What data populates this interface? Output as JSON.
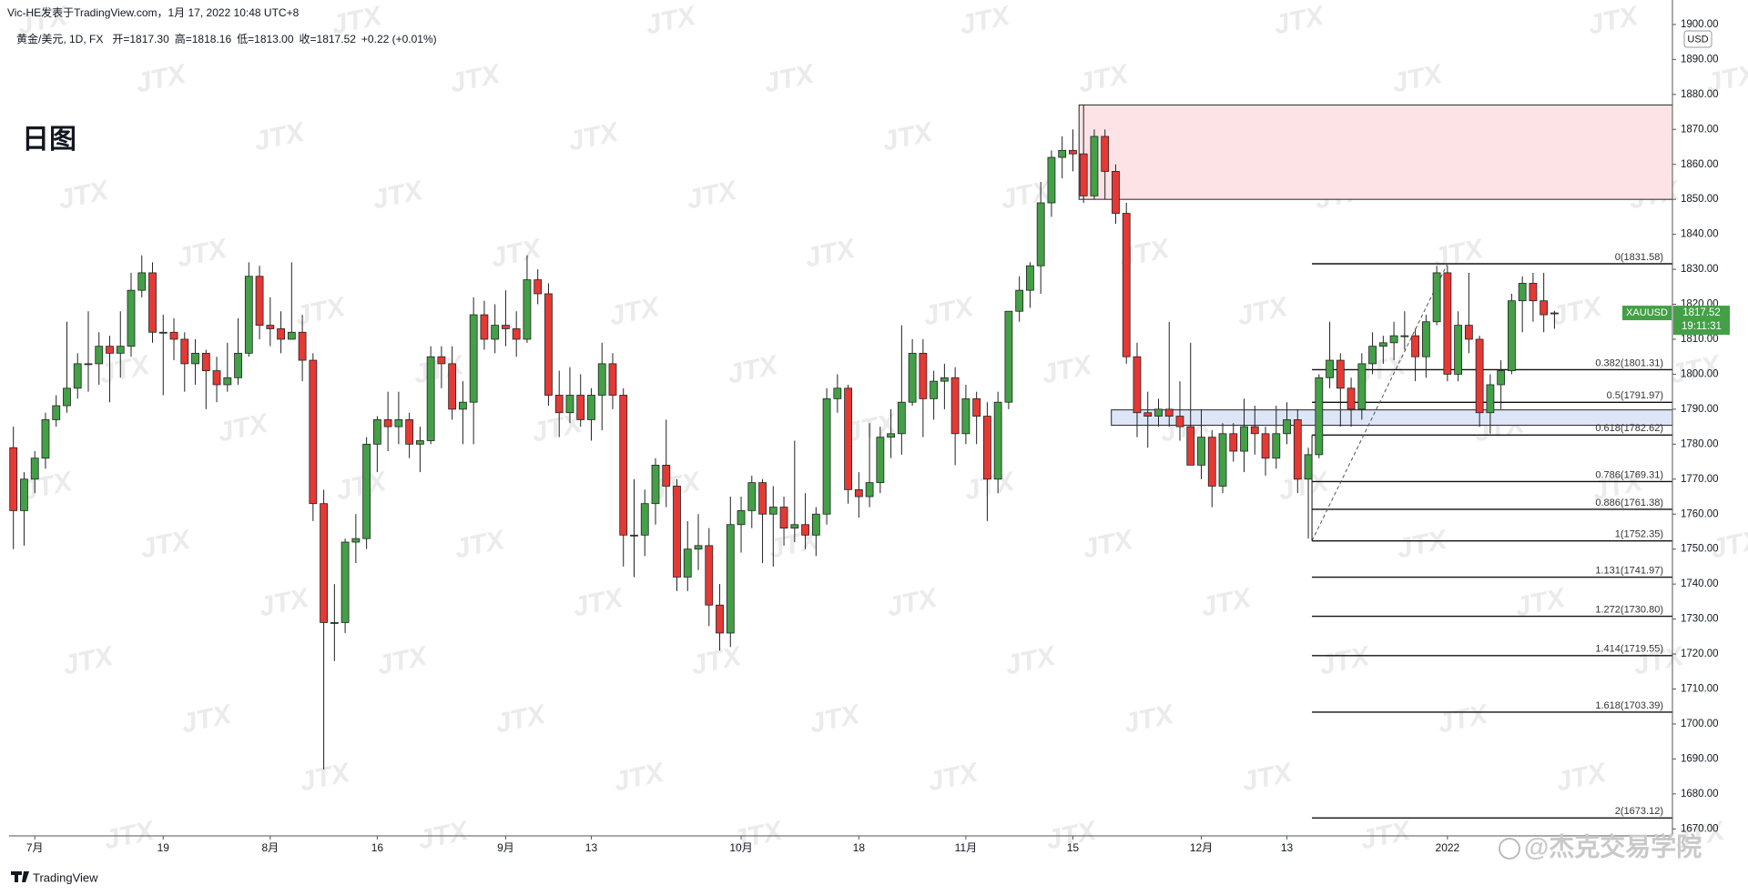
{
  "chart_data": {
    "type": "candlestick",
    "header": "Vic-HE发表于TradingView.com，1月 17, 2022 10:48 UTC+8",
    "symbol": "黄金/美元, 1D, FX",
    "legend": [
      "开=1817.30",
      "高=1818.16",
      "低=1813.00",
      "收=1817.52",
      "+0.22 (+0.01%)"
    ],
    "title": "日图",
    "currency": "USD",
    "ticker": "XAUUSD",
    "countdown": "19:11:31",
    "watermark": "JTX",
    "credit": "@杰克交易学院",
    "brand": "TradingView",
    "up_color": "#43a047",
    "down_color": "#e53935",
    "ylim": [
      1668,
      1907
    ],
    "yticks": [
      {
        "value": 1670,
        "label": "1670.00"
      },
      {
        "value": 1680,
        "label": "1680.00"
      },
      {
        "value": 1690,
        "label": "1690.00"
      },
      {
        "value": 1700,
        "label": "1700.00"
      },
      {
        "value": 1710,
        "label": "1710.00"
      },
      {
        "value": 1720,
        "label": "1720.00"
      },
      {
        "value": 1730,
        "label": "1730.00"
      },
      {
        "value": 1740,
        "label": "1740.00"
      },
      {
        "value": 1750,
        "label": "1750.00"
      },
      {
        "value": 1760,
        "label": "1760.00"
      },
      {
        "value": 1770,
        "label": "1770.00"
      },
      {
        "value": 1780,
        "label": "1780.00"
      },
      {
        "value": 1790,
        "label": "1790.00"
      },
      {
        "value": 1800,
        "label": "1800.00"
      },
      {
        "value": 1810,
        "label": "1810.00"
      },
      {
        "value": 1820,
        "label": "1820.00"
      },
      {
        "value": 1830,
        "label": "1830.00"
      },
      {
        "value": 1840,
        "label": "1840.00"
      },
      {
        "value": 1850,
        "label": "1850.00"
      },
      {
        "value": 1860,
        "label": "1860.00"
      },
      {
        "value": 1870,
        "label": "1870.00"
      },
      {
        "value": 1880,
        "label": "1880.00"
      },
      {
        "value": 1890,
        "label": "1890.00"
      },
      {
        "value": 1900,
        "label": "1900.00"
      }
    ],
    "categories": [
      null,
      null,
      "7月",
      null,
      null,
      null,
      null,
      null,
      null,
      null,
      null,
      null,
      null,
      null,
      "19",
      null,
      null,
      null,
      null,
      null,
      null,
      null,
      null,
      null,
      "8月",
      null,
      null,
      null,
      null,
      null,
      null,
      null,
      null,
      null,
      "16",
      null,
      null,
      null,
      null,
      null,
      null,
      null,
      null,
      null,
      null,
      null,
      "9月",
      null,
      null,
      null,
      null,
      null,
      null,
      null,
      "13",
      null,
      null,
      null,
      null,
      null,
      null,
      null,
      null,
      null,
      null,
      null,
      null,
      null,
      "10月",
      null,
      null,
      null,
      null,
      null,
      null,
      null,
      null,
      null,
      null,
      "18",
      null,
      null,
      null,
      null,
      null,
      null,
      null,
      null,
      null,
      "11月",
      null,
      null,
      null,
      null,
      null,
      null,
      null,
      null,
      null,
      "15",
      null,
      null,
      null,
      null,
      null,
      null,
      null,
      null,
      null,
      null,
      null,
      "12月",
      null,
      null,
      null,
      null,
      null,
      null,
      null,
      "13",
      null,
      null,
      null,
      null,
      null,
      null,
      null,
      null,
      null,
      null,
      null,
      null,
      null,
      null,
      "2022",
      null,
      null,
      null,
      null,
      null,
      null,
      null,
      null,
      null,
      null
    ],
    "candles": [
      [
        1779,
        1785,
        1750,
        1761
      ],
      [
        1761,
        1772,
        1751,
        1770
      ],
      [
        1770,
        1778,
        1766,
        1776
      ],
      [
        1776,
        1789,
        1773,
        1787
      ],
      [
        1787,
        1794,
        1785,
        1791
      ],
      [
        1791,
        1815,
        1789,
        1796
      ],
      [
        1796,
        1806,
        1793,
        1803
      ],
      [
        1803,
        1818,
        1795,
        1803
      ],
      [
        1803,
        1812,
        1797,
        1808
      ],
      [
        1808,
        1811,
        1792,
        1806
      ],
      [
        1806,
        1818,
        1799,
        1808
      ],
      [
        1808,
        1829,
        1805,
        1824
      ],
      [
        1824,
        1834,
        1822,
        1829
      ],
      [
        1829,
        1832,
        1809,
        1812
      ],
      [
        1812,
        1817,
        1794,
        1812
      ],
      [
        1812,
        1816,
        1804,
        1810
      ],
      [
        1810,
        1812,
        1795,
        1803
      ],
      [
        1803,
        1810,
        1797,
        1806
      ],
      [
        1806,
        1807,
        1790,
        1801
      ],
      [
        1801,
        1805,
        1792,
        1797
      ],
      [
        1797,
        1809,
        1795,
        1799
      ],
      [
        1799,
        1816,
        1797,
        1806
      ],
      [
        1806,
        1832,
        1805,
        1828
      ],
      [
        1828,
        1831,
        1810,
        1814
      ],
      [
        1814,
        1822,
        1808,
        1813
      ],
      [
        1813,
        1818,
        1806,
        1810
      ],
      [
        1810,
        1832,
        1810,
        1812
      ],
      [
        1812,
        1817,
        1798,
        1804
      ],
      [
        1804,
        1806,
        1758,
        1763
      ],
      [
        1763,
        1767,
        1687,
        1729
      ],
      [
        1729,
        1740,
        1718,
        1729
      ],
      [
        1729,
        1753,
        1726,
        1752
      ],
      [
        1752,
        1760,
        1746,
        1753
      ],
      [
        1753,
        1782,
        1750,
        1780
      ],
      [
        1780,
        1788,
        1772,
        1787
      ],
      [
        1787,
        1795,
        1778,
        1785
      ],
      [
        1785,
        1795,
        1780,
        1787
      ],
      [
        1787,
        1789,
        1776,
        1780
      ],
      [
        1780,
        1785,
        1772,
        1781
      ],
      [
        1781,
        1808,
        1780,
        1805
      ],
      [
        1805,
        1808,
        1796,
        1803
      ],
      [
        1803,
        1808,
        1787,
        1790
      ],
      [
        1790,
        1798,
        1780,
        1792
      ],
      [
        1792,
        1822,
        1780,
        1817
      ],
      [
        1817,
        1821,
        1807,
        1810
      ],
      [
        1810,
        1820,
        1806,
        1814
      ],
      [
        1814,
        1824,
        1808,
        1813
      ],
      [
        1813,
        1818,
        1805,
        1810
      ],
      [
        1810,
        1834,
        1809,
        1827
      ],
      [
        1827,
        1830,
        1820,
        1823
      ],
      [
        1823,
        1826,
        1791,
        1794
      ],
      [
        1794,
        1801,
        1782,
        1789
      ],
      [
        1789,
        1802,
        1786,
        1794
      ],
      [
        1794,
        1800,
        1785,
        1787
      ],
      [
        1787,
        1796,
        1781,
        1794
      ],
      [
        1794,
        1809,
        1784,
        1803
      ],
      [
        1803,
        1806,
        1790,
        1794
      ],
      [
        1794,
        1796,
        1745,
        1754
      ],
      [
        1754,
        1770,
        1742,
        1754
      ],
      [
        1754,
        1767,
        1748,
        1763
      ],
      [
        1763,
        1776,
        1757,
        1774
      ],
      [
        1774,
        1787,
        1762,
        1768
      ],
      [
        1768,
        1770,
        1738,
        1742
      ],
      [
        1742,
        1758,
        1738,
        1750
      ],
      [
        1750,
        1760,
        1744,
        1751
      ],
      [
        1751,
        1756,
        1728,
        1734
      ],
      [
        1734,
        1740,
        1721,
        1726
      ],
      [
        1726,
        1765,
        1722,
        1757
      ],
      [
        1757,
        1765,
        1749,
        1761
      ],
      [
        1761,
        1771,
        1756,
        1769
      ],
      [
        1769,
        1770,
        1746,
        1760
      ],
      [
        1760,
        1768,
        1745,
        1762
      ],
      [
        1762,
        1765,
        1751,
        1756
      ],
      [
        1756,
        1781,
        1752,
        1757
      ],
      [
        1757,
        1766,
        1750,
        1754
      ],
      [
        1754,
        1762,
        1748,
        1760
      ],
      [
        1760,
        1796,
        1757,
        1793
      ],
      [
        1793,
        1800,
        1789,
        1796
      ],
      [
        1796,
        1797,
        1763,
        1767
      ],
      [
        1767,
        1772,
        1759,
        1765
      ],
      [
        1765,
        1786,
        1762,
        1769
      ],
      [
        1769,
        1785,
        1766,
        1782
      ],
      [
        1782,
        1790,
        1776,
        1783
      ],
      [
        1783,
        1814,
        1777,
        1792
      ],
      [
        1792,
        1810,
        1791,
        1806
      ],
      [
        1806,
        1810,
        1782,
        1793
      ],
      [
        1793,
        1801,
        1787,
        1798
      ],
      [
        1798,
        1803,
        1790,
        1799
      ],
      [
        1799,
        1802,
        1774,
        1783
      ],
      [
        1783,
        1797,
        1780,
        1793
      ],
      [
        1793,
        1795,
        1780,
        1788
      ],
      [
        1788,
        1792,
        1758,
        1770
      ],
      [
        1770,
        1795,
        1766,
        1792
      ],
      [
        1792,
        1818,
        1790,
        1818
      ],
      [
        1818,
        1828,
        1815,
        1824
      ],
      [
        1824,
        1832,
        1819,
        1831
      ],
      [
        1831,
        1855,
        1823,
        1849
      ],
      [
        1849,
        1864,
        1845,
        1862
      ],
      [
        1862,
        1868,
        1856,
        1864
      ],
      [
        1864,
        1870,
        1858,
        1863
      ],
      [
        1863,
        1877,
        1849,
        1851
      ],
      [
        1851,
        1870,
        1850,
        1868
      ],
      [
        1868,
        1870,
        1850,
        1858
      ],
      [
        1858,
        1860,
        1843,
        1846
      ],
      [
        1846,
        1849,
        1803,
        1805
      ],
      [
        1805,
        1809,
        1782,
        1789
      ],
      [
        1789,
        1795,
        1779,
        1788
      ],
      [
        1788,
        1793,
        1785,
        1790
      ],
      [
        1790,
        1815,
        1785,
        1788
      ],
      [
        1788,
        1798,
        1781,
        1785
      ],
      [
        1785,
        1809,
        1774,
        1774
      ],
      [
        1774,
        1790,
        1770,
        1782
      ],
      [
        1782,
        1784,
        1762,
        1768
      ],
      [
        1768,
        1786,
        1766,
        1783
      ],
      [
        1783,
        1786,
        1775,
        1778
      ],
      [
        1778,
        1793,
        1772,
        1785
      ],
      [
        1785,
        1791,
        1777,
        1783
      ],
      [
        1783,
        1785,
        1771,
        1776
      ],
      [
        1776,
        1791,
        1773,
        1783
      ],
      [
        1783,
        1792,
        1780,
        1787
      ],
      [
        1787,
        1790,
        1766,
        1770
      ],
      [
        1770,
        1779,
        1753,
        1777
      ],
      [
        1777,
        1800,
        1776,
        1799
      ],
      [
        1799,
        1815,
        1796,
        1804
      ],
      [
        1804,
        1806,
        1785,
        1796
      ],
      [
        1796,
        1799,
        1785,
        1790
      ],
      [
        1790,
        1806,
        1787,
        1803
      ],
      [
        1803,
        1812,
        1800,
        1808
      ],
      [
        1808,
        1811,
        1803,
        1809
      ],
      [
        1809,
        1815,
        1804,
        1811
      ],
      [
        1811,
        1818,
        1807,
        1811
      ],
      [
        1811,
        1813,
        1798,
        1805
      ],
      [
        1805,
        1817,
        1799,
        1815
      ],
      [
        1815,
        1831,
        1814,
        1829
      ],
      [
        1829,
        1831,
        1798,
        1800
      ],
      [
        1800,
        1818,
        1798,
        1814
      ],
      [
        1814,
        1829,
        1806,
        1810
      ],
      [
        1810,
        1811,
        1785,
        1789
      ],
      [
        1789,
        1800,
        1783,
        1797
      ],
      [
        1797,
        1804,
        1790,
        1801
      ],
      [
        1801,
        1823,
        1800,
        1821
      ],
      [
        1821,
        1828,
        1812,
        1826
      ],
      [
        1826,
        1829,
        1815,
        1821
      ],
      [
        1821,
        1829,
        1812,
        1817
      ],
      [
        1817.3,
        1818.16,
        1813,
        1817.52
      ]
    ],
    "zones": [
      {
        "from": 1850,
        "to": 1877,
        "color": "#fde3e5"
      },
      {
        "from": 1785.4,
        "to": 1789.8,
        "color": "#dce6f8"
      }
    ],
    "fib_levels": [
      {
        "value": 1831.58,
        "label": "0(1831.58)"
      },
      {
        "value": 1801.31,
        "label": "0.382(1801.31)"
      },
      {
        "value": 1791.97,
        "label": "0.5(1791.97)"
      },
      {
        "value": 1782.62,
        "label": "0.618(1782.62)"
      },
      {
        "value": 1769.31,
        "label": "0.786(1769.31)"
      },
      {
        "value": 1761.38,
        "label": "0.886(1761.38)"
      },
      {
        "value": 1752.35,
        "label": "1(1752.35)"
      },
      {
        "value": 1741.97,
        "label": "1.131(1741.97)"
      },
      {
        "value": 1730.8,
        "label": "1.272(1730.80)"
      },
      {
        "value": 1719.55,
        "label": "1.414(1719.55)"
      },
      {
        "value": 1703.39,
        "label": "1.618(1703.39)"
      },
      {
        "value": 1673.12,
        "label": "2(1673.12)"
      }
    ]
  }
}
